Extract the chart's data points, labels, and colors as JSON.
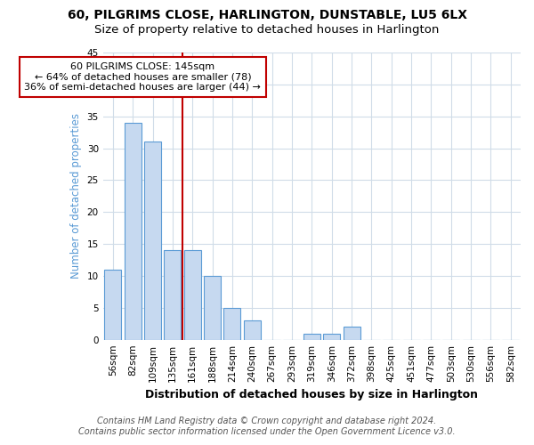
{
  "title1": "60, PILGRIMS CLOSE, HARLINGTON, DUNSTABLE, LU5 6LX",
  "title2": "Size of property relative to detached houses in Harlington",
  "xlabel": "Distribution of detached houses by size in Harlington",
  "ylabel": "Number of detached properties",
  "categories": [
    "56sqm",
    "82sqm",
    "109sqm",
    "135sqm",
    "161sqm",
    "188sqm",
    "214sqm",
    "240sqm",
    "267sqm",
    "293sqm",
    "319sqm",
    "346sqm",
    "372sqm",
    "398sqm",
    "425sqm",
    "451sqm",
    "477sqm",
    "503sqm",
    "530sqm",
    "556sqm",
    "582sqm"
  ],
  "values": [
    11,
    34,
    31,
    14,
    14,
    10,
    5,
    3,
    0,
    0,
    1,
    1,
    2,
    0,
    0,
    0,
    0,
    0,
    0,
    0,
    0
  ],
  "bar_color": "#c6d9f0",
  "bar_edge_color": "#5b9bd5",
  "vline_x_index": 3,
  "vline_color": "#c00000",
  "annotation_line1": "60 PILGRIMS CLOSE: 145sqm",
  "annotation_line2": "← 64% of detached houses are smaller (78)",
  "annotation_line3": "36% of semi-detached houses are larger (44) →",
  "annotation_box_color": "#ffffff",
  "annotation_box_edge_color": "#c00000",
  "ylim": [
    0,
    45
  ],
  "yticks": [
    0,
    5,
    10,
    15,
    20,
    25,
    30,
    35,
    40,
    45
  ],
  "footer1": "Contains HM Land Registry data © Crown copyright and database right 2024.",
  "footer2": "Contains public sector information licensed under the Open Government Licence v3.0.",
  "background_color": "#ffffff",
  "grid_color": "#d0dce8",
  "title1_fontsize": 10,
  "title2_fontsize": 9.5,
  "xlabel_fontsize": 9,
  "ylabel_fontsize": 8.5,
  "tick_fontsize": 7.5,
  "footer_fontsize": 7,
  "annot_fontsize": 8
}
